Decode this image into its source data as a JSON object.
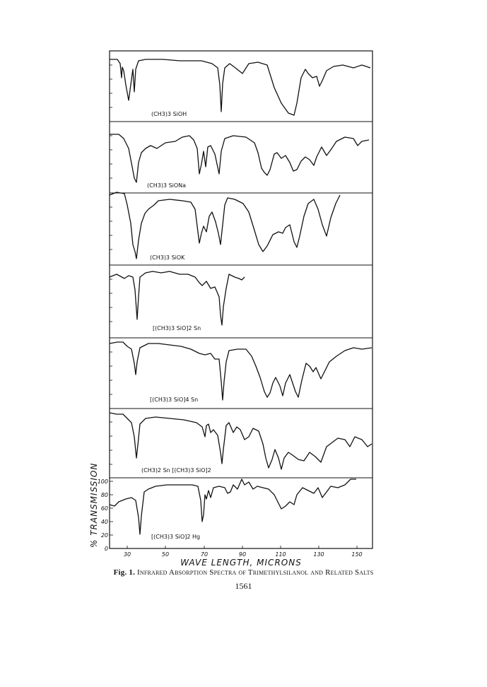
{
  "figure": {
    "ylabel": "% TRANSMISSION",
    "xlabel": "WAVE LENGTH, MICRONS",
    "y_ticks": [
      "100",
      "80",
      "60",
      "40",
      "20",
      "0"
    ],
    "x_ticks": [
      "30",
      "50",
      "70",
      "90",
      "110",
      "130",
      "150"
    ],
    "panels": [
      {
        "label": "(CH3)3 SiOH"
      },
      {
        "label": "(CH3)3 SiONa"
      },
      {
        "label": "(CH3)3 SiOK"
      },
      {
        "label": "[(CH3)3 SiO]2 Sn"
      },
      {
        "label": "[(CH3)3 SiO]4 Sn"
      },
      {
        "label": "(CH3)2 Sn [(CH3)3 SiO]2"
      },
      {
        "label": "[(CH3)3 SiO]2 Hg"
      }
    ]
  },
  "caption": {
    "prefix": "Fig. 1.",
    "text": "Infrared Absorption Spectra of Trimethylsilanol and Related Salts"
  },
  "page_number": "1561"
}
